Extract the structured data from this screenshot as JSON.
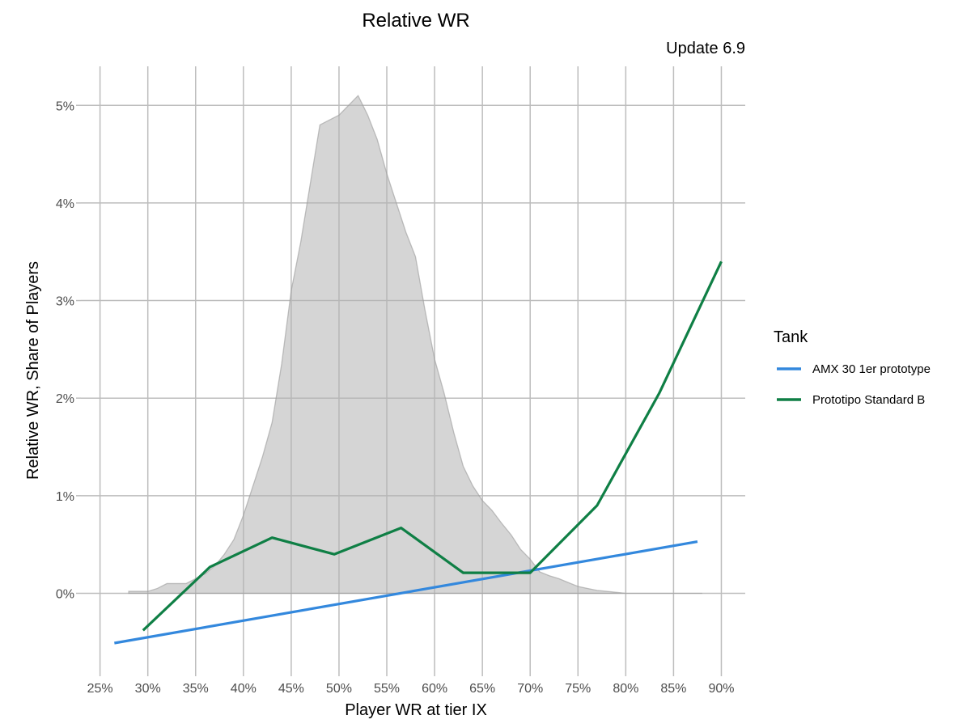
{
  "chart_data": {
    "type": "line",
    "title": "Relative WR",
    "subtitle": "Update 6.9",
    "xlabel": "Player WR at tier IX",
    "ylabel": "Relative WR, Share of Players",
    "xlim": [
      0.23,
      0.925
    ],
    "ylim": [
      -0.008,
      0.054
    ],
    "x_ticks": [
      0.25,
      0.3,
      0.35,
      0.4,
      0.45,
      0.5,
      0.55,
      0.6,
      0.65,
      0.7,
      0.75,
      0.8,
      0.85,
      0.9
    ],
    "x_tick_labels": [
      "25%",
      "30%",
      "35%",
      "40%",
      "45%",
      "50%",
      "55%",
      "60%",
      "65%",
      "70%",
      "75%",
      "80%",
      "85%",
      "90%"
    ],
    "y_ticks": [
      0.0,
      0.01,
      0.02,
      0.03,
      0.04,
      0.05
    ],
    "y_tick_labels": [
      "0%",
      "1%",
      "2%",
      "3%",
      "4%",
      "5%"
    ],
    "grid": true,
    "legend": {
      "title": "Tank",
      "position": "right"
    },
    "distribution": {
      "x": [
        0.28,
        0.29,
        0.3,
        0.31,
        0.32,
        0.33,
        0.34,
        0.35,
        0.36,
        0.37,
        0.38,
        0.39,
        0.4,
        0.41,
        0.42,
        0.43,
        0.44,
        0.45,
        0.46,
        0.47,
        0.48,
        0.49,
        0.5,
        0.51,
        0.52,
        0.53,
        0.54,
        0.55,
        0.56,
        0.57,
        0.58,
        0.59,
        0.6,
        0.61,
        0.62,
        0.63,
        0.64,
        0.65,
        0.66,
        0.67,
        0.68,
        0.69,
        0.7,
        0.71,
        0.72,
        0.73,
        0.74,
        0.75,
        0.76,
        0.77,
        0.78,
        0.79,
        0.8,
        0.81,
        0.82,
        0.83,
        0.84,
        0.85,
        0.86,
        0.87,
        0.88
      ],
      "y": [
        0.0002,
        0.0002,
        0.0002,
        0.0005,
        0.001,
        0.001,
        0.001,
        0.0015,
        0.002,
        0.0028,
        0.004,
        0.0055,
        0.008,
        0.011,
        0.014,
        0.0175,
        0.0235,
        0.031,
        0.036,
        0.042,
        0.048,
        0.0485,
        0.049,
        0.05,
        0.051,
        0.049,
        0.0465,
        0.043,
        0.04,
        0.037,
        0.0345,
        0.029,
        0.024,
        0.0205,
        0.0165,
        0.013,
        0.011,
        0.0095,
        0.0085,
        0.0072,
        0.006,
        0.0045,
        0.0035,
        0.0022,
        0.0018,
        0.0015,
        0.0011,
        0.0007,
        0.0005,
        0.0003,
        0.0002,
        0.0001,
        0.0,
        0.0,
        0.0,
        0.0,
        0.0,
        0.0,
        0.0,
        0.0,
        0.0
      ]
    },
    "series": [
      {
        "name": "AMX 30 1er prototype",
        "color": "#3388dd",
        "x": [
          0.265,
          0.875
        ],
        "y": [
          -0.0051,
          0.0053
        ]
      },
      {
        "name": "Prototipo Standard B",
        "color": "#0f7f45",
        "x": [
          0.295,
          0.365,
          0.43,
          0.495,
          0.565,
          0.63,
          0.7,
          0.77,
          0.835,
          0.9
        ],
        "y": [
          -0.0038,
          0.0027,
          0.0057,
          0.004,
          0.0067,
          0.0021,
          0.0021,
          0.009,
          0.0205,
          0.034
        ]
      }
    ]
  }
}
